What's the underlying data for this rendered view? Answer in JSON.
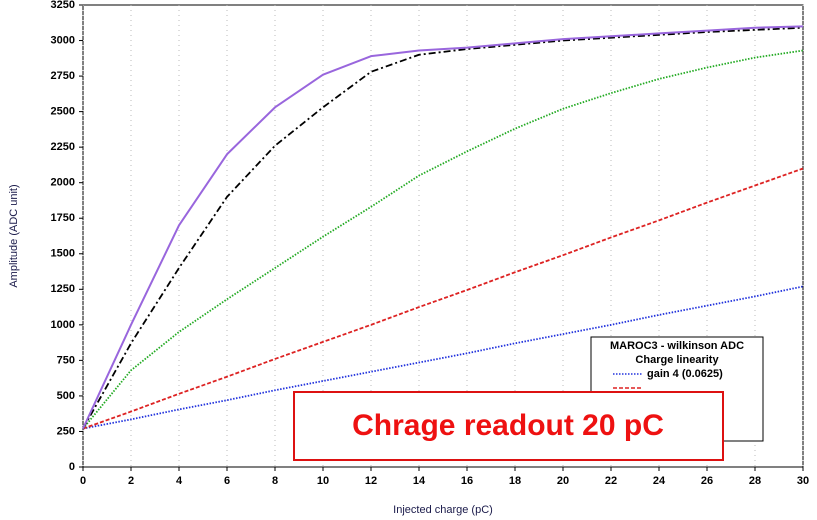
{
  "chart_data": {
    "type": "line",
    "x_label": "Injected charge (pC)",
    "y_label": "Amplitude (ADC unit)",
    "x": [
      0,
      2,
      4,
      6,
      8,
      10,
      12,
      14,
      16,
      18,
      20,
      22,
      24,
      26,
      28,
      30
    ],
    "xlim": [
      0,
      30
    ],
    "xticks": [
      0,
      2,
      4,
      6,
      8,
      10,
      12,
      14,
      16,
      18,
      20,
      22,
      24,
      26,
      28,
      30
    ],
    "ylim": [
      0,
      3250
    ],
    "yticks": [
      0,
      250,
      500,
      750,
      1000,
      1250,
      1500,
      1750,
      2000,
      2250,
      2500,
      2750,
      3000,
      3250
    ],
    "grid": true,
    "legend_title": "MAROC3 - wilkinson ADC",
    "legend_subtitle": "Charge linearity",
    "series": [
      {
        "name": "gain 4 (0.0625)",
        "color": "#2233dd",
        "dash": "1.5,1.5",
        "values": [
          270,
          335,
          405,
          470,
          540,
          605,
          670,
          735,
          800,
          870,
          935,
          1000,
          1070,
          1135,
          1200,
          1270
        ]
      },
      {
        "color": "#dd2222",
        "dash": "4,2",
        "values": [
          270,
          390,
          515,
          635,
          760,
          880,
          1000,
          1125,
          1245,
          1370,
          1490,
          1615,
          1735,
          1860,
          1980,
          2100
        ]
      },
      {
        "color": "#22aa22",
        "dash": "1.5,1.5",
        "values": [
          270,
          680,
          950,
          1180,
          1400,
          1620,
          1830,
          2050,
          2220,
          2380,
          2520,
          2630,
          2730,
          2810,
          2880,
          2930
        ]
      },
      {
        "color": "#000000",
        "dash": "7,3,2,3",
        "values": [
          270,
          870,
          1400,
          1900,
          2260,
          2530,
          2780,
          2900,
          2940,
          2970,
          3000,
          3020,
          3040,
          3060,
          3075,
          3090
        ]
      },
      {
        "color": "#9966dd",
        "dash": "",
        "values": [
          270,
          1000,
          1700,
          2200,
          2530,
          2760,
          2890,
          2930,
          2950,
          2980,
          3010,
          3030,
          3050,
          3070,
          3090,
          3100
        ]
      }
    ],
    "annotation": "Chrage readout 20 pC"
  }
}
